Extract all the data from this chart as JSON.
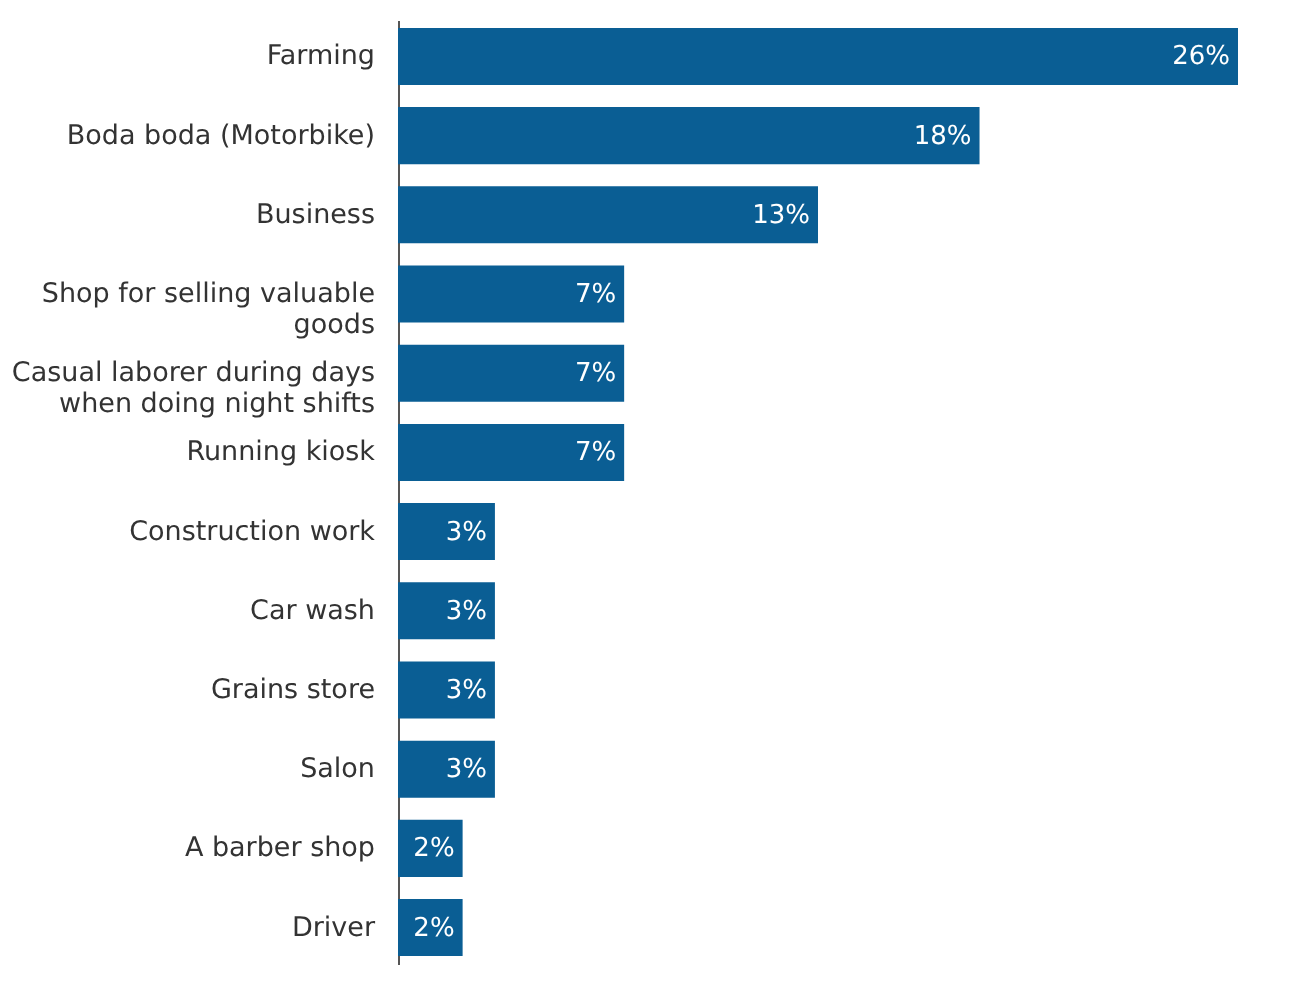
{
  "chart_data": {
    "type": "bar",
    "orientation": "horizontal",
    "categories": [
      "Farming",
      "Boda boda (Motorbike)",
      "Business",
      "Shop for selling valuable goods",
      "Casual laborer during days when doing night shifts",
      "Running kiosk",
      "Construction work",
      "Car wash",
      "Grains store",
      "Salon",
      "A barber shop",
      "Driver"
    ],
    "values": [
      26,
      18,
      13,
      7,
      7,
      7,
      3,
      3,
      3,
      3,
      2,
      2
    ],
    "value_labels": [
      "26%",
      "18%",
      "13%",
      "7%",
      "7%",
      "7%",
      "3%",
      "3%",
      "3%",
      "3%",
      "2%",
      "2%"
    ],
    "color": "#0a5e94"
  }
}
